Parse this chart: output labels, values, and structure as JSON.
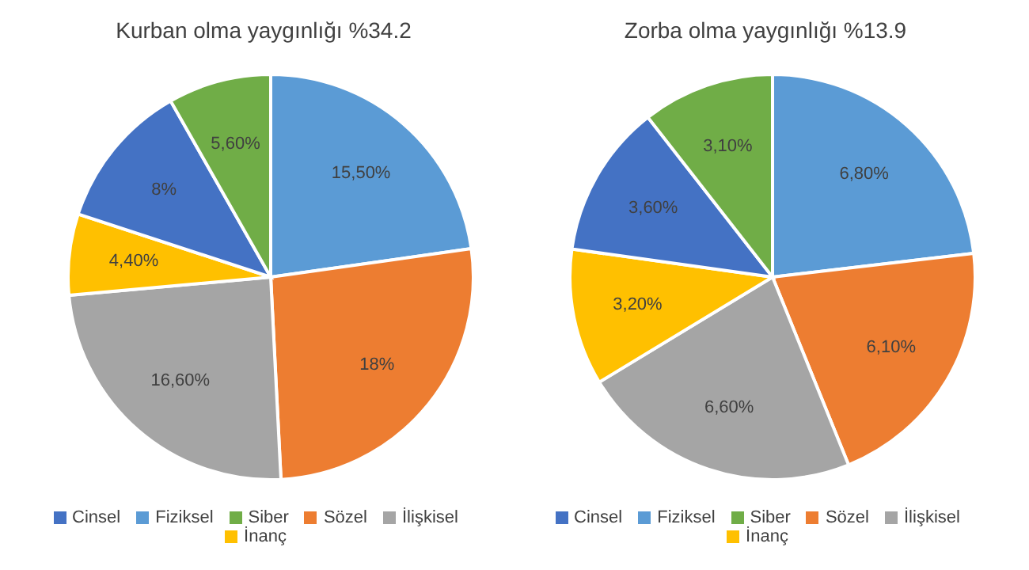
{
  "chart_data": [
    {
      "type": "pie",
      "title": "Kurban olma yaygınlığı %34.2",
      "categories": [
        "Fiziksel",
        "Sözel",
        "İlişkisel",
        "İnanç",
        "Cinsel",
        "Siber"
      ],
      "values": [
        15.5,
        18,
        16.6,
        4.4,
        8,
        5.6
      ],
      "value_labels": [
        "15,50%",
        "18%",
        "16,60%",
        "4,40%",
        "8%",
        "5,60%"
      ],
      "colors": [
        "#5b9bd5",
        "#ed7d31",
        "#a5a5a5",
        "#ffc000",
        "#4472c4",
        "#70ad47"
      ],
      "legend": "bottom"
    },
    {
      "type": "pie",
      "title": "Zorba olma yaygınlığı %13.9",
      "categories": [
        "Fiziksel",
        "Sözel",
        "İlişkisel",
        "İnanç",
        "Cinsel",
        "Siber"
      ],
      "values": [
        6.8,
        6.1,
        6.6,
        3.2,
        3.6,
        3.1
      ],
      "value_labels": [
        "6,80%",
        "6,10%",
        "6,60%",
        "3,20%",
        "3,60%",
        "3,10%"
      ],
      "colors": [
        "#5b9bd5",
        "#ed7d31",
        "#a5a5a5",
        "#ffc000",
        "#4472c4",
        "#70ad47"
      ],
      "legend": "bottom"
    }
  ]
}
